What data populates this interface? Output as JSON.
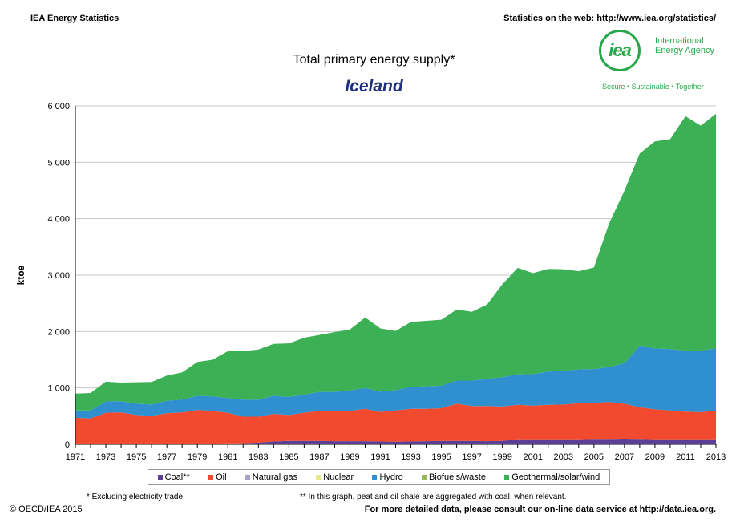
{
  "header": {
    "left": "IEA Energy Statistics",
    "right": "Statistics on the web: http://www.iea.org/statistics/"
  },
  "logo": {
    "mark": "iea",
    "name_line1": "International",
    "name_line2": "Energy Agency",
    "tagline": "Secure • Sustainable • Together"
  },
  "footer": {
    "note1": "* Excluding electricity trade.",
    "note2": "** In this graph, peat and oil shale are aggregated with coal, when relevant.",
    "copyright": "© OECD/IEA 2015",
    "right": "For more detailed data, please consult our on-line data service at http://data.iea.org."
  },
  "chart_data": {
    "type": "area",
    "stacked": true,
    "title": "Total primary energy supply*",
    "subtitle": "Iceland",
    "ylabel": "ktoe",
    "xlabel": "",
    "ylim": [
      0,
      6000
    ],
    "yticks": [
      "0",
      "1 000",
      "2 000",
      "3 000",
      "4 000",
      "5 000",
      "6 000"
    ],
    "ytick_values": [
      0,
      1000,
      2000,
      3000,
      4000,
      5000,
      6000
    ],
    "xticks": [
      "1971",
      "1973",
      "1975",
      "1977",
      "1979",
      "1981",
      "1983",
      "1985",
      "1987",
      "1989",
      "1991",
      "1993",
      "1995",
      "1997",
      "1999",
      "2001",
      "2003",
      "2005",
      "2007",
      "2009",
      "2011",
      "2013"
    ],
    "grid": "horizontal",
    "legend_position": "bottom",
    "x": [
      1971,
      1972,
      1973,
      1974,
      1975,
      1976,
      1977,
      1978,
      1979,
      1980,
      1981,
      1982,
      1983,
      1984,
      1985,
      1986,
      1987,
      1988,
      1989,
      1990,
      1991,
      1992,
      1993,
      1994,
      1995,
      1996,
      1997,
      1998,
      1999,
      2000,
      2001,
      2002,
      2003,
      2004,
      2005,
      2006,
      2007,
      2008,
      2009,
      2010,
      2011,
      2012,
      2013
    ],
    "series": [
      {
        "name": "Coal**",
        "color": "#5b3f95",
        "values": [
          5,
          5,
          5,
          5,
          5,
          5,
          5,
          5,
          10,
          10,
          15,
          20,
          30,
          50,
          60,
          60,
          60,
          55,
          55,
          55,
          50,
          45,
          50,
          55,
          60,
          60,
          60,
          55,
          60,
          90,
          90,
          90,
          90,
          90,
          95,
          95,
          100,
          95,
          90,
          90,
          90,
          90,
          90
        ]
      },
      {
        "name": "Oil",
        "color": "#f24a2e",
        "values": [
          465,
          455,
          555,
          560,
          515,
          500,
          545,
          560,
          600,
          580,
          545,
          470,
          460,
          490,
          460,
          500,
          530,
          535,
          540,
          575,
          525,
          555,
          580,
          575,
          580,
          660,
          620,
          625,
          610,
          610,
          595,
          610,
          615,
          640,
          640,
          655,
          620,
          560,
          530,
          510,
          490,
          480,
          510
        ]
      },
      {
        "name": "Natural gas",
        "color": "#a3a3c8",
        "values": [
          0,
          0,
          0,
          0,
          0,
          0,
          0,
          0,
          0,
          0,
          0,
          0,
          0,
          0,
          0,
          0,
          0,
          0,
          0,
          0,
          0,
          0,
          0,
          0,
          0,
          0,
          0,
          0,
          0,
          0,
          0,
          0,
          0,
          0,
          0,
          0,
          0,
          0,
          0,
          0,
          0,
          0,
          0
        ]
      },
      {
        "name": "Nuclear",
        "color": "#e6e88a",
        "values": [
          0,
          0,
          0,
          0,
          0,
          0,
          0,
          0,
          0,
          0,
          0,
          0,
          0,
          0,
          0,
          0,
          0,
          0,
          0,
          0,
          0,
          0,
          0,
          0,
          0,
          0,
          0,
          0,
          0,
          0,
          0,
          0,
          0,
          0,
          0,
          0,
          0,
          0,
          0,
          0,
          0,
          0,
          0
        ]
      },
      {
        "name": "Hydro",
        "color": "#2f8fcf",
        "values": [
          130,
          140,
          200,
          200,
          200,
          200,
          220,
          230,
          250,
          260,
          260,
          300,
          300,
          320,
          320,
          320,
          340,
          340,
          360,
          370,
          360,
          360,
          390,
          400,
          400,
          410,
          450,
          480,
          520,
          540,
          560,
          590,
          600,
          600,
          600,
          620,
          720,
          1100,
          1080,
          1090,
          1080,
          1090,
          1100
        ]
      },
      {
        "name": "Biofuels/waste",
        "color": "#96b85a",
        "values": [
          0,
          0,
          0,
          0,
          0,
          0,
          0,
          0,
          0,
          0,
          0,
          0,
          0,
          0,
          0,
          0,
          0,
          0,
          0,
          0,
          0,
          0,
          0,
          0,
          0,
          0,
          0,
          0,
          0,
          0,
          0,
          0,
          0,
          0,
          0,
          0,
          0,
          0,
          0,
          0,
          0,
          0,
          0
        ]
      },
      {
        "name": "Geothermal/solar/wind",
        "color": "#3cb054",
        "values": [
          300,
          310,
          350,
          330,
          380,
          400,
          450,
          480,
          600,
          650,
          830,
          860,
          890,
          920,
          950,
          1010,
          1010,
          1060,
          1080,
          1250,
          1120,
          1050,
          1150,
          1160,
          1170,
          1260,
          1220,
          1320,
          1650,
          1890,
          1790,
          1820,
          1800,
          1740,
          1800,
          2550,
          3060,
          3400,
          3670,
          3720,
          4160,
          3990,
          4160
        ]
      }
    ]
  }
}
